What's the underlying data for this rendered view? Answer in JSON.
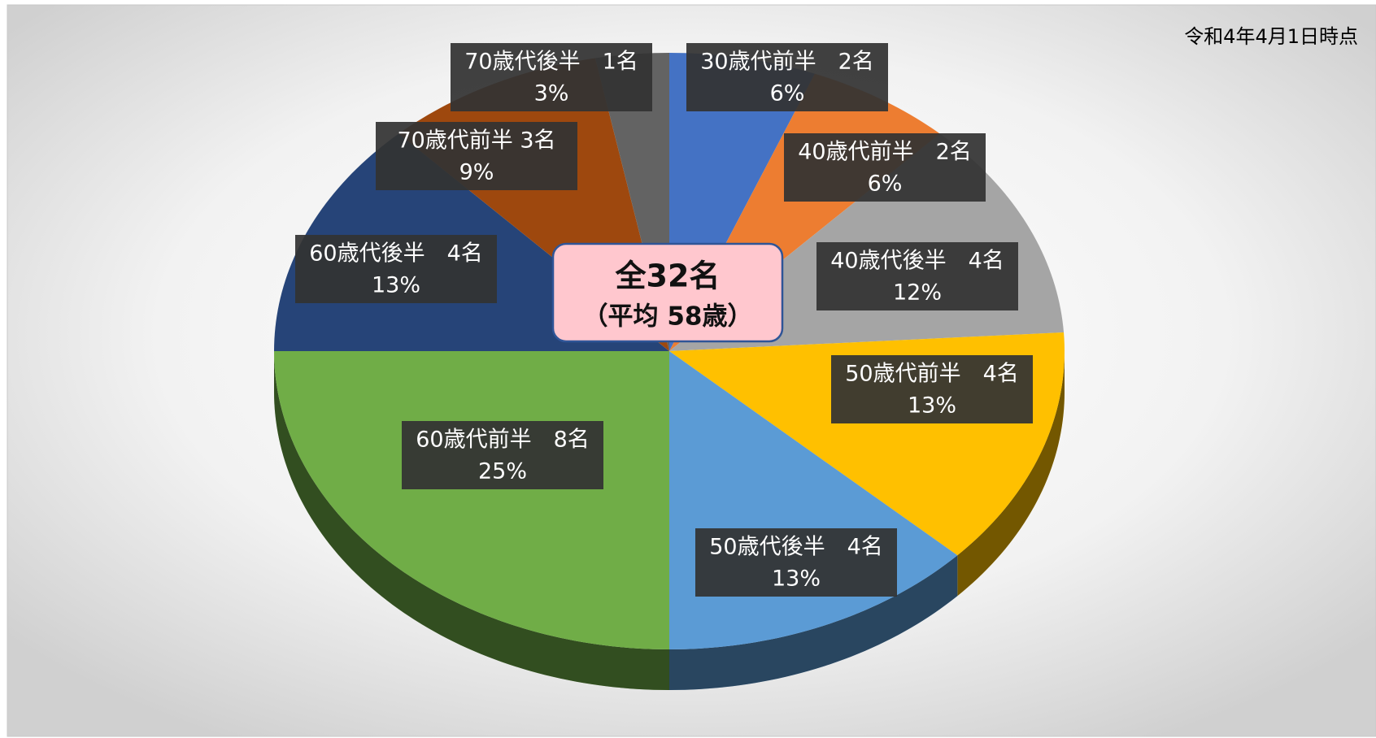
{
  "chart_data": {
    "type": "pie3d",
    "annotation": "令和4年4月1日時点",
    "center_label": [
      "全32名",
      "（平均 58歳）"
    ],
    "categories": [
      "30歳代前半　2名",
      "40歳代前半　2名",
      "40歳代後半　4名",
      "50歳代前半　4名",
      "50歳代後半　4名",
      "60歳代前半　8名",
      "60歳代後半　4名",
      "70歳代前半 3名",
      "70歳代後半　1名"
    ],
    "values": [
      6,
      6,
      12,
      13,
      13,
      25,
      13,
      9,
      3
    ],
    "value_labels": [
      "6%",
      "6%",
      "12%",
      "13%",
      "13%",
      "25%",
      "13%",
      "9%",
      "3%"
    ],
    "colors": [
      "#4472c4",
      "#ed7d31",
      "#a5a5a5",
      "#ffc000",
      "#5b9bd5",
      "#70ad47",
      "#264478",
      "#9e480e",
      "#636363"
    ]
  }
}
